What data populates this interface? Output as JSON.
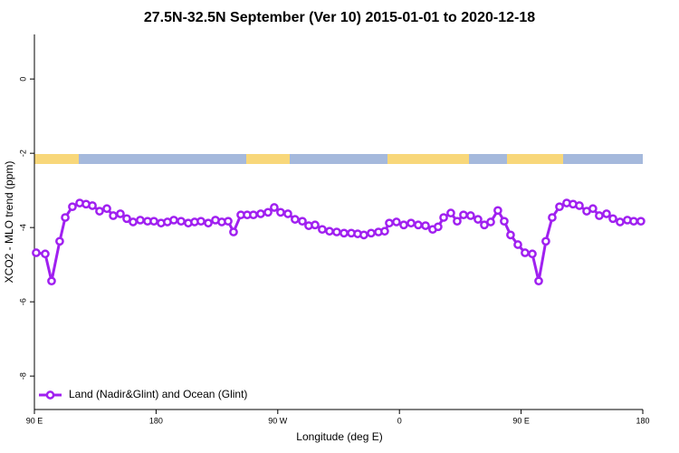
{
  "chart_data": {
    "type": "line",
    "title": "27.5N-32.5N September (Ver 10)   2015-01-01 to 2020-12-18",
    "x_label": "Longitude (deg E)",
    "y_label": "XCO2 - MLO trend (ppm)",
    "xlim": [
      90,
      540
    ],
    "xticks": [
      {
        "value": 90,
        "label": "90 E"
      },
      180,
      {
        "value": 270,
        "label": "90 W"
      },
      {
        "value": 360,
        "label": "0"
      },
      {
        "value": 450,
        "label": "90 E"
      },
      {
        "value": 540,
        "label": "180"
      }
    ],
    "ylim": [
      -8.9,
      1.2
    ],
    "yticks": [
      0,
      -2,
      -4,
      -6,
      -8
    ],
    "legend": "bottom-left",
    "x": [
      91.3,
      98,
      102.7,
      108.7,
      112.8,
      118.1,
      123.5,
      128.2,
      132.9,
      138.2,
      143.6,
      148.3,
      153.6,
      158.3,
      163,
      168.3,
      173.7,
      178.4,
      183.7,
      188.4,
      193.1,
      198.5,
      203.8,
      208.5,
      213.2,
      218.6,
      223.9,
      228.6,
      233.3,
      237.3,
      242.7,
      247.4,
      252,
      257.4,
      262.8,
      267.4,
      272.1,
      277.5,
      282.8,
      288.2,
      292.9,
      297.6,
      302.9,
      308.3,
      313.6,
      319,
      324.4,
      329.1,
      333.7,
      339.1,
      344.5,
      349.1,
      352.5,
      357.8,
      363.2,
      368.6,
      373.9,
      379.3,
      384.6,
      388.6,
      392.7,
      398,
      402.7,
      407.4,
      412.7,
      418.1,
      422.8,
      427.5,
      432.8,
      437.5,
      442.2,
      447.6,
      452.9,
      458.3,
      463,
      468.3,
      473,
      478.4,
      483.7,
      488.4,
      493.1,
      498.5,
      503.1,
      507.8,
      513.2,
      517.9,
      523.2,
      528.6,
      533.3,
      538.6
    ],
    "series": [
      {
        "name": "Land (Nadir&Glint) and Ocean (Glint)",
        "color": "#a020f0",
        "values": [
          -4.68,
          -4.71,
          -5.44,
          -4.37,
          -3.73,
          -3.44,
          -3.34,
          -3.37,
          -3.41,
          -3.56,
          -3.49,
          -3.68,
          -3.63,
          -3.76,
          -3.85,
          -3.8,
          -3.83,
          -3.83,
          -3.88,
          -3.85,
          -3.8,
          -3.83,
          -3.88,
          -3.85,
          -3.83,
          -3.88,
          -3.8,
          -3.85,
          -3.83,
          -4.12,
          -3.66,
          -3.66,
          -3.66,
          -3.63,
          -3.59,
          -3.46,
          -3.59,
          -3.63,
          -3.78,
          -3.83,
          -3.95,
          -3.93,
          -4.05,
          -4.1,
          -4.12,
          -4.15,
          -4.15,
          -4.17,
          -4.2,
          -4.15,
          -4.12,
          -4.1,
          -3.88,
          -3.85,
          -3.93,
          -3.88,
          -3.93,
          -3.95,
          -4.05,
          -3.98,
          -3.73,
          -3.61,
          -3.83,
          -3.66,
          -3.68,
          -3.78,
          -3.93,
          -3.85,
          -3.54,
          -3.83,
          -4.2,
          -4.46,
          -4.68,
          -4.71,
          -5.44,
          -4.37,
          -3.73,
          -3.44,
          -3.34,
          -3.37,
          -3.41,
          -3.56,
          -3.49,
          -3.68,
          -3.63,
          -3.76,
          -3.85,
          -3.8,
          -3.83,
          -3.83
        ]
      }
    ]
  }
}
